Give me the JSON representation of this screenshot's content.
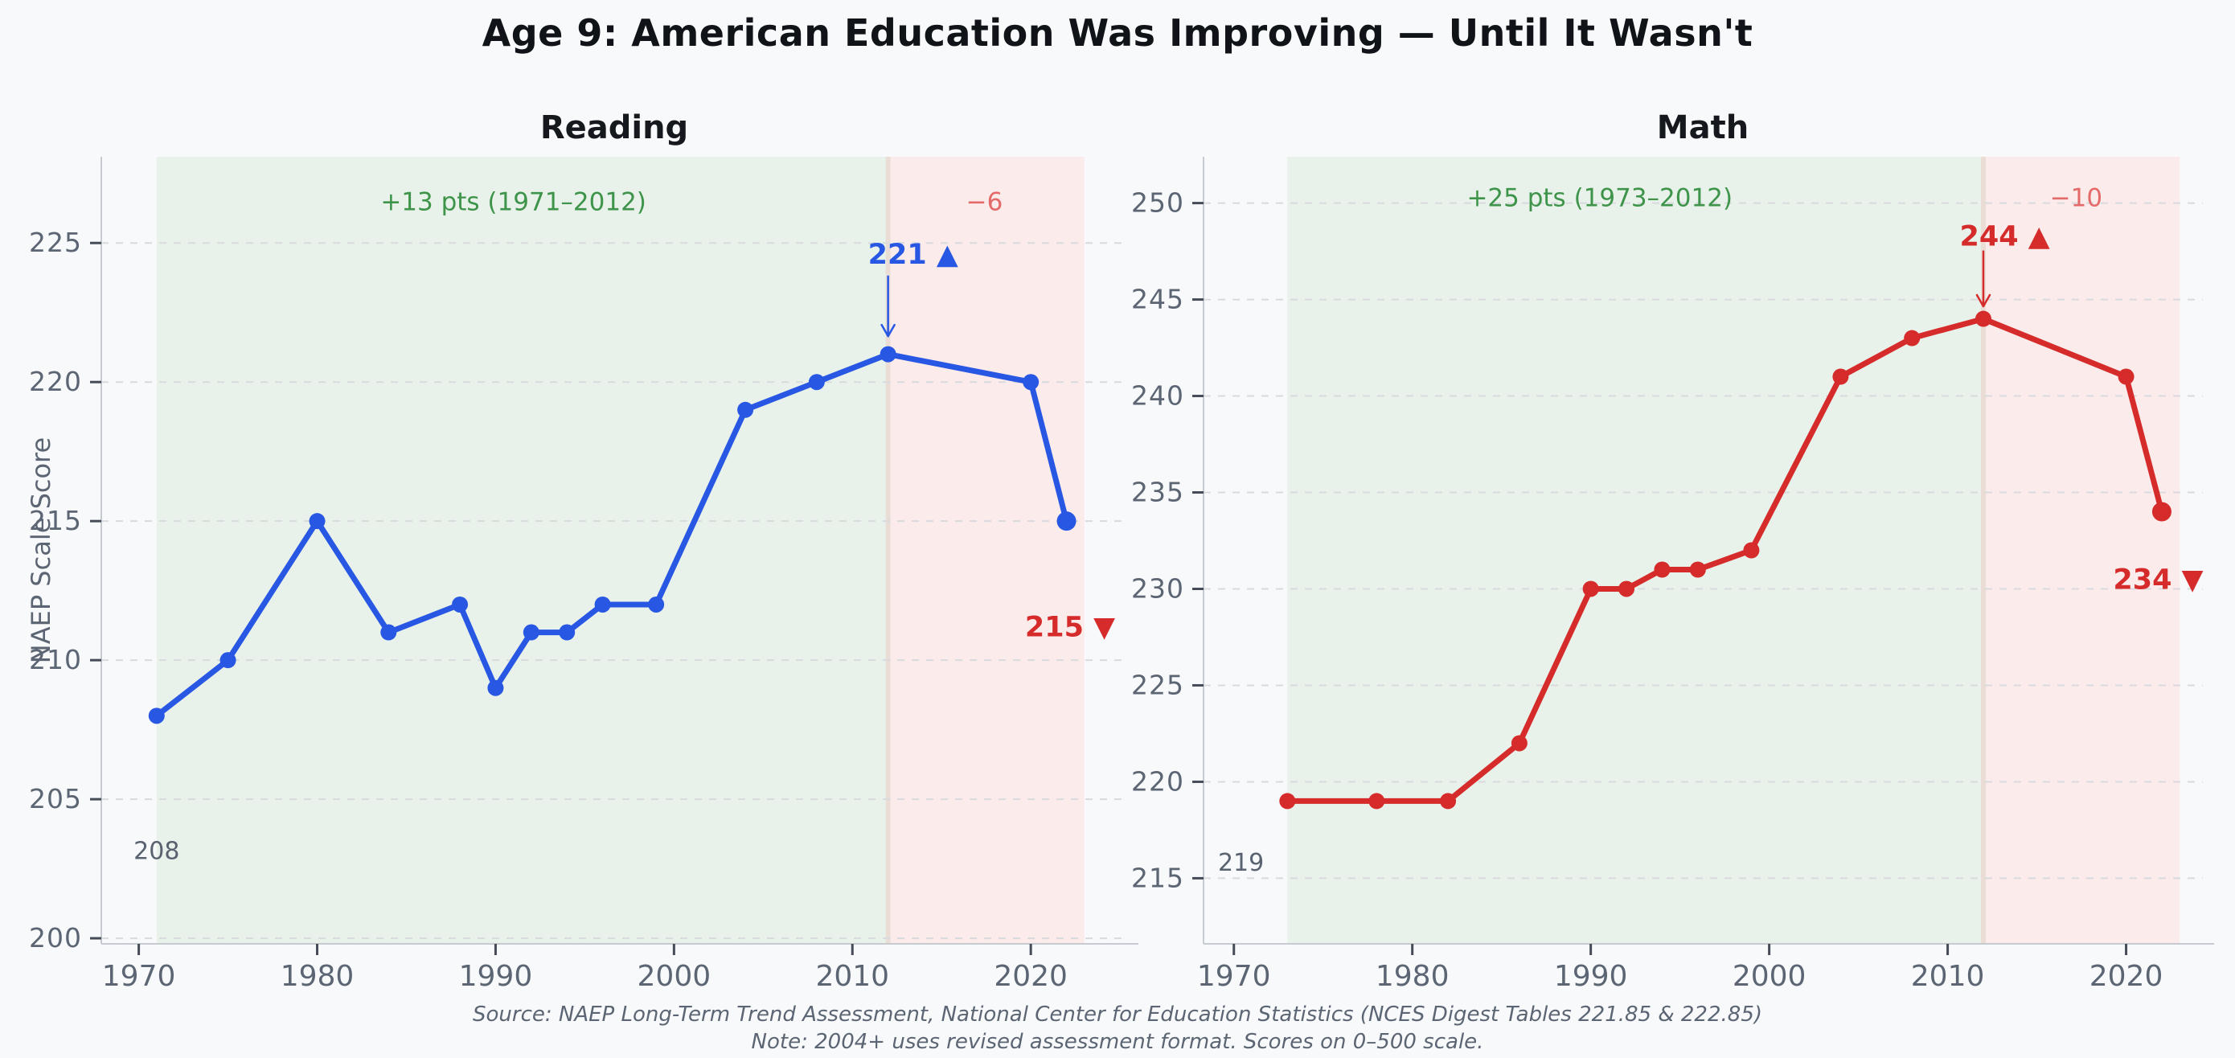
{
  "page": {
    "title": "Age 9: American Education Was Improving — Until It Wasn't",
    "background": "#f8f9fa"
  },
  "footer": {
    "source": "Source: NAEP Long-Term Trend Assessment, National Center for Education Statistics (NCES Digest Tables 221.85 & 222.85)",
    "note": "Note: 2004+ uses revised assessment format. Scores on 0–500 scale."
  },
  "colors": {
    "background": "#f8f9fa",
    "title": "#101418",
    "subplot_title": "#15181c",
    "blue_line": "#2757e3",
    "red_line": "#d62b2b",
    "green_region": "#e9f2ea",
    "pink_region": "#fbebeb",
    "region_seam": "#e9ddd6",
    "green_text": "#3e944a",
    "soft_red_text": "#e46a6a",
    "tick_text": "#5b6573",
    "point_label_text": "#596270",
    "grid": "#d8dade",
    "spine": "#c6cbd2",
    "tick_mark": "#454c57"
  },
  "chart_data": [
    {
      "id": "reading",
      "type": "line",
      "title": "Reading",
      "ylabel": "NAEP Scale Score",
      "xlabel": "",
      "color": "#2757e3",
      "x": [
        1971,
        1975,
        1980,
        1984,
        1988,
        1990,
        1992,
        1994,
        1996,
        1999,
        2004,
        2008,
        2012,
        2020,
        2022
      ],
      "values": [
        208,
        210,
        215,
        211,
        212,
        209,
        211,
        211,
        212,
        212,
        219,
        220,
        221,
        220,
        215
      ],
      "xlim": [
        1967.9,
        2025.4
      ],
      "ylim": [
        199.8,
        228.1
      ],
      "xticks": [
        1970,
        1980,
        1990,
        2000,
        2010,
        2020
      ],
      "yticks": [
        200,
        205,
        210,
        215,
        220,
        225
      ],
      "grid": true,
      "legend": "none",
      "regions": [
        {
          "name": "improving-era",
          "from": 1971,
          "to": 2012,
          "fill": "#e9f2ea",
          "label": "+13 pts (1971–2012)",
          "label_color": "#3e944a",
          "label_x": 1991,
          "label_y": 226.5
        },
        {
          "name": "decline-era",
          "from": 2012,
          "to": 2023,
          "fill": "#fbebeb",
          "label": "−6",
          "label_color": "#e46a6a",
          "label_x": 2017.4,
          "label_y": 226.5
        }
      ],
      "annotations": [
        {
          "name": "peak-label",
          "text": "221 ▲",
          "x": 2013.4,
          "y": 224.6,
          "color": "#2757e3",
          "bold": true,
          "size": 35,
          "arrow": {
            "x": 2012,
            "from_y": 223.8,
            "to_y": 221.65
          }
        },
        {
          "name": "latest-label",
          "text": "215 ▼",
          "x": 2022.2,
          "y": 211.2,
          "color": "#d62b2b",
          "bold": true,
          "size": 35
        },
        {
          "name": "baseline-label",
          "text": "208",
          "x": 1971,
          "y": 203.2,
          "color": "#596270",
          "bold": false,
          "size": 30
        }
      ]
    },
    {
      "id": "math",
      "type": "line",
      "title": "Math",
      "ylabel": "",
      "xlabel": "",
      "color": "#d62b2b",
      "x": [
        1973,
        1978,
        1982,
        1986,
        1990,
        1992,
        1994,
        1996,
        1999,
        2004,
        2008,
        2012,
        2020,
        2022
      ],
      "values": [
        219,
        219,
        219,
        222,
        230,
        230,
        231,
        231,
        232,
        241,
        243,
        244,
        241,
        234
      ],
      "xlim": [
        1968.3,
        2024.3
      ],
      "ylim": [
        211.6,
        252.4
      ],
      "xticks": [
        1970,
        1980,
        1990,
        2000,
        2010,
        2020
      ],
      "yticks": [
        215,
        220,
        225,
        230,
        235,
        240,
        245,
        250
      ],
      "grid": true,
      "legend": "none",
      "regions": [
        {
          "name": "improving-era",
          "from": 1973,
          "to": 2012,
          "fill": "#e9f2ea",
          "label": "+25 pts (1973–2012)",
          "label_color": "#3e944a",
          "label_x": 1990.5,
          "label_y": 250.3
        },
        {
          "name": "decline-era",
          "from": 2012,
          "to": 2023,
          "fill": "#fbebeb",
          "label": "−10",
          "label_color": "#e46a6a",
          "label_x": 2017.2,
          "label_y": 250.3
        }
      ],
      "annotations": [
        {
          "name": "peak-label",
          "text": "244 ▲",
          "x": 2013.2,
          "y": 248.3,
          "color": "#d62b2b",
          "bold": true,
          "size": 35,
          "arrow": {
            "x": 2012,
            "from_y": 247.5,
            "to_y": 244.65
          }
        },
        {
          "name": "latest-label",
          "text": "234 ▼",
          "x": 2021.8,
          "y": 230.5,
          "color": "#d62b2b",
          "bold": true,
          "size": 35
        },
        {
          "name": "baseline-label",
          "text": "219",
          "x": 1970.4,
          "y": 215.9,
          "color": "#596270",
          "bold": false,
          "size": 30
        }
      ]
    }
  ]
}
